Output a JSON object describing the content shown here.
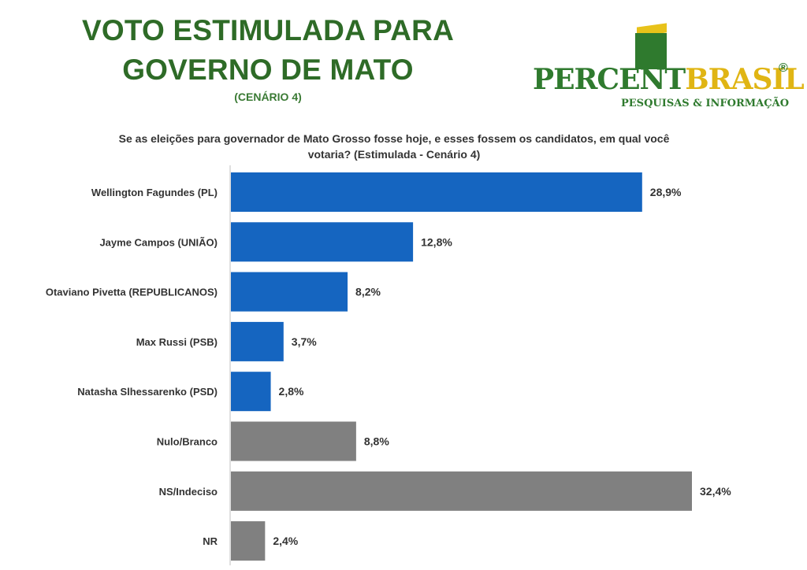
{
  "header": {
    "title_line1": "VOTO ESTIMULADA PARA",
    "title_line2": "GOVERNO DE MATO",
    "subtitle": "(CENÁRIO 4)"
  },
  "logo": {
    "word_part1": "PERCENT",
    "word_part2": "BRASIL",
    "registered": "®",
    "tagline": "PESQUISAS & INFORMAÇÃO"
  },
  "question": {
    "line1": "Se as eleições para governador de Mato Grosso fosse hoje, e esses fossem os candidatos, em qual você",
    "line2": "votaria? (Estimulada - Cenário 4)"
  },
  "colors": {
    "candidate_bar": "#1565c0",
    "other_bar": "#808080",
    "title": "#2e6b27"
  },
  "chart_data": {
    "type": "bar",
    "orientation": "horizontal",
    "categories": [
      "Wellington Fagundes (PL)",
      "Jayme Campos (UNIÃO)",
      "Otaviano Pivetta (REPUBLICANOS)",
      "Max Russi (PSB)",
      "Natasha Slhessarenko (PSD)",
      "Nulo/Branco",
      "NS/Indeciso",
      "NR"
    ],
    "values": [
      28.9,
      12.8,
      8.2,
      3.7,
      2.8,
      8.8,
      32.4,
      2.4
    ],
    "value_labels": [
      "28,9%",
      "12,8%",
      "8,2%",
      "3,7%",
      "2,8%",
      "8,8%",
      "32,4%",
      "2,4%"
    ],
    "bar_groups": [
      "candidate",
      "candidate",
      "candidate",
      "candidate",
      "candidate",
      "other",
      "other",
      "other"
    ],
    "xlim": [
      0,
      32.4
    ],
    "grid": false,
    "legend": "none"
  }
}
